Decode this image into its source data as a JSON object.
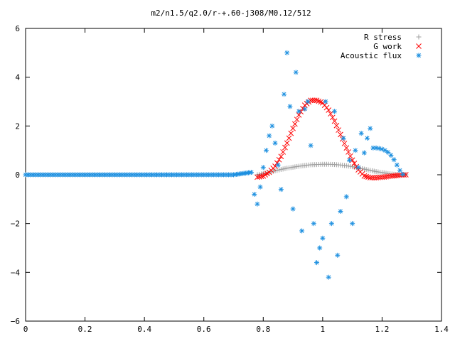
{
  "chart_data": {
    "type": "scatter",
    "title": "m2/n1.5/q2.0/r-+.60-j308/M0.12/512",
    "xlabel": "",
    "ylabel": "",
    "xlim": [
      0,
      1.4
    ],
    "ylim": [
      -6,
      6
    ],
    "xticks": [
      "0",
      "0.2",
      "0.4",
      "0.6",
      "0.8",
      "1",
      "1.2",
      "1.4"
    ],
    "yticks": [
      "6",
      "4",
      "2",
      "0",
      "−2",
      "−4",
      "−6"
    ],
    "grid": false,
    "legend_position": "top-right",
    "series": [
      {
        "name": "R stress",
        "marker": "+",
        "color": "#a0a0a0",
        "x": [
          0.78,
          0.8,
          0.82,
          0.84,
          0.86,
          0.88,
          0.9,
          0.92,
          0.94,
          0.96,
          0.98,
          1.0,
          1.02,
          1.04,
          1.06,
          1.08,
          1.1,
          1.12,
          1.14,
          1.16,
          1.18,
          1.2,
          1.22,
          1.24,
          1.26,
          1.28
        ],
        "y": [
          0.0,
          0.05,
          0.1,
          0.16,
          0.22,
          0.27,
          0.31,
          0.35,
          0.38,
          0.41,
          0.42,
          0.43,
          0.43,
          0.42,
          0.4,
          0.37,
          0.33,
          0.28,
          0.23,
          0.18,
          0.13,
          0.09,
          0.05,
          0.02,
          0.0,
          0.0
        ]
      },
      {
        "name": "G work",
        "marker": "x",
        "color": "#ff0000",
        "x": [
          0.78,
          0.8,
          0.82,
          0.84,
          0.86,
          0.88,
          0.9,
          0.92,
          0.94,
          0.96,
          0.98,
          1.0,
          1.02,
          1.04,
          1.06,
          1.08,
          1.1,
          1.12,
          1.14,
          1.16,
          1.18,
          1.2,
          1.22,
          1.24,
          1.26,
          1.28
        ],
        "y": [
          -0.1,
          -0.05,
          0.1,
          0.35,
          0.75,
          1.3,
          1.9,
          2.45,
          2.85,
          3.05,
          3.05,
          2.95,
          2.65,
          2.2,
          1.65,
          1.1,
          0.6,
          0.2,
          -0.05,
          -0.12,
          -0.12,
          -0.1,
          -0.07,
          -0.04,
          -0.02,
          0.0
        ]
      },
      {
        "name": "Acoustic flux",
        "marker": "*",
        "color": "#1e90e0",
        "x": [
          0.0,
          0.1,
          0.2,
          0.3,
          0.4,
          0.5,
          0.6,
          0.7,
          0.76,
          0.77,
          0.78,
          0.79,
          0.8,
          0.81,
          0.82,
          0.83,
          0.84,
          0.85,
          0.86,
          0.87,
          0.88,
          0.89,
          0.9,
          0.91,
          0.92,
          0.93,
          0.94,
          0.95,
          0.96,
          0.97,
          0.98,
          0.99,
          1.0,
          1.01,
          1.02,
          1.03,
          1.04,
          1.05,
          1.06,
          1.07,
          1.08,
          1.09,
          1.1,
          1.11,
          1.12,
          1.13,
          1.14,
          1.15,
          1.16,
          1.17,
          1.18,
          1.19,
          1.2,
          1.21,
          1.22,
          1.23,
          1.24,
          1.25,
          1.26,
          1.27
        ],
        "y": [
          0.0,
          0.0,
          0.0,
          0.0,
          0.0,
          0.0,
          0.0,
          0.0,
          0.1,
          -0.8,
          -1.2,
          -0.5,
          0.3,
          1.0,
          1.6,
          2.0,
          1.3,
          0.4,
          -0.6,
          3.3,
          5.0,
          2.8,
          -1.4,
          4.2,
          2.6,
          -2.3,
          2.7,
          3.0,
          1.2,
          -2.0,
          -3.6,
          -3.0,
          -2.6,
          3.0,
          -4.2,
          -2.0,
          2.6,
          -3.3,
          -1.5,
          1.5,
          -0.9,
          0.6,
          -2.0,
          1.0,
          0.3,
          1.7,
          0.9,
          1.5,
          1.9,
          1.1,
          1.1,
          1.08,
          1.05,
          1.0,
          0.92,
          0.8,
          0.62,
          0.4,
          0.18,
          0.02
        ]
      }
    ]
  }
}
